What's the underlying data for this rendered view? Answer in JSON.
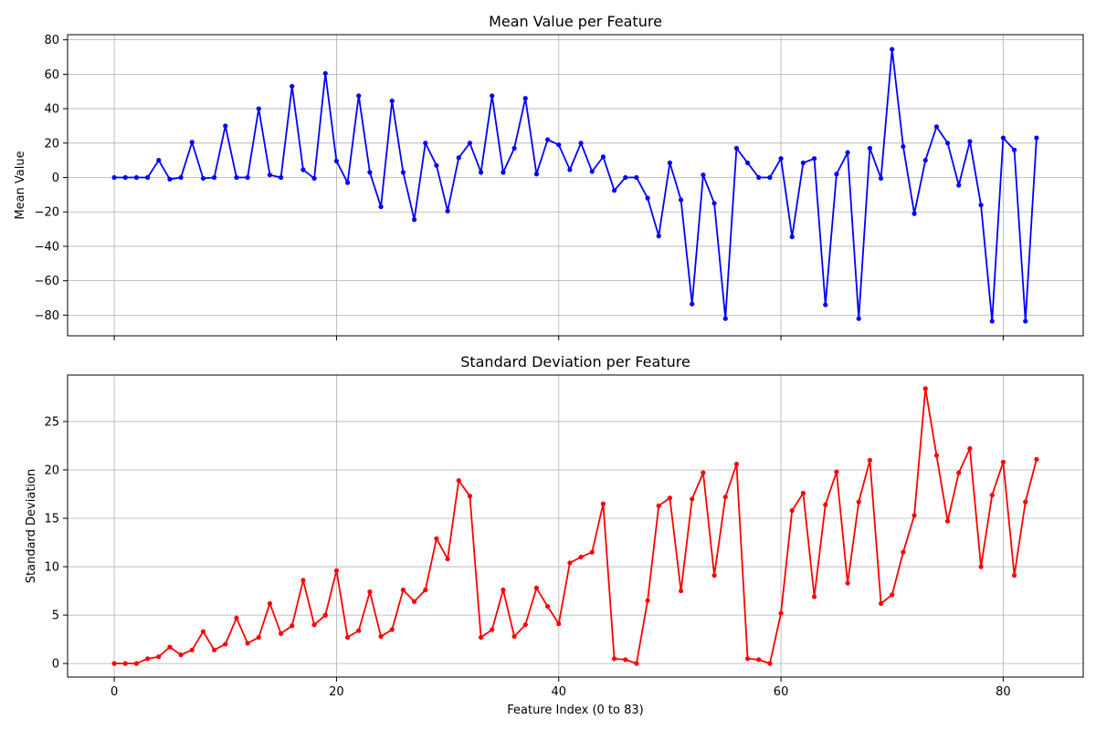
{
  "chart_data": [
    {
      "type": "line",
      "title": "Mean Value per Feature",
      "xlabel": "",
      "ylabel": "Mean Value",
      "xlim": [
        -4.2,
        87.2
      ],
      "ylim": [
        -92,
        83
      ],
      "xticks": [
        0,
        20,
        40,
        60,
        80
      ],
      "xtick_labels_visible": false,
      "yticks": [
        -80,
        -60,
        -40,
        -20,
        0,
        20,
        40,
        60,
        80
      ],
      "ytick_labels": [
        "−80",
        "−60",
        "−40",
        "−20",
        "0",
        "20",
        "40",
        "60",
        "80"
      ],
      "grid": true,
      "color": "#0000ff",
      "x": [
        0,
        1,
        2,
        3,
        4,
        5,
        6,
        7,
        8,
        9,
        10,
        11,
        12,
        13,
        14,
        15,
        16,
        17,
        18,
        19,
        20,
        21,
        22,
        23,
        24,
        25,
        26,
        27,
        28,
        29,
        30,
        31,
        32,
        33,
        34,
        35,
        36,
        37,
        38,
        39,
        40,
        41,
        42,
        43,
        44,
        45,
        46,
        47,
        48,
        49,
        50,
        51,
        52,
        53,
        54,
        55,
        56,
        57,
        58,
        59,
        60,
        61,
        62,
        63,
        64,
        65,
        66,
        67,
        68,
        69,
        70,
        71,
        72,
        73,
        74,
        75,
        76,
        77,
        78,
        79,
        80,
        81,
        82,
        83
      ],
      "values": [
        0,
        0,
        0,
        0,
        10,
        -1,
        0,
        20.5,
        -0.5,
        0,
        30,
        0,
        0,
        40,
        1.5,
        0,
        53,
        4.5,
        -0.5,
        60.5,
        9.5,
        -3,
        47.5,
        3,
        -17,
        44.5,
        3,
        -24.5,
        20,
        7,
        -19.5,
        11.5,
        20,
        3,
        47.5,
        3,
        17,
        46,
        2,
        22,
        19,
        4.5,
        20,
        3.5,
        12,
        -7.5,
        0,
        0,
        -12,
        -34,
        8.5,
        -13,
        -73.5,
        1.5,
        -15,
        -82,
        17,
        8.5,
        0,
        0,
        11,
        -34.5,
        8.5,
        11,
        -74,
        2,
        14.5,
        -82,
        17,
        -0.5,
        74.5,
        18,
        -21,
        10,
        29.5,
        20,
        -4.5,
        21,
        -16,
        -83.5,
        23,
        16,
        -83.5,
        23
      ]
    },
    {
      "type": "line",
      "title": "Standard Deviation per Feature",
      "xlabel": "Feature Index (0 to 83)",
      "ylabel": "Standard Deviation",
      "xlim": [
        -4.2,
        87.2
      ],
      "ylim": [
        -1.4,
        29.8
      ],
      "xticks": [
        0,
        20,
        40,
        60,
        80
      ],
      "xtick_labels": [
        "0",
        "20",
        "40",
        "60",
        "80"
      ],
      "yticks": [
        0,
        5,
        10,
        15,
        20,
        25
      ],
      "ytick_labels": [
        "0",
        "5",
        "10",
        "15",
        "20",
        "25"
      ],
      "grid": true,
      "color": "#ff0000",
      "x": [
        0,
        1,
        2,
        3,
        4,
        5,
        6,
        7,
        8,
        9,
        10,
        11,
        12,
        13,
        14,
        15,
        16,
        17,
        18,
        19,
        20,
        21,
        22,
        23,
        24,
        25,
        26,
        27,
        28,
        29,
        30,
        31,
        32,
        33,
        34,
        35,
        36,
        37,
        38,
        39,
        40,
        41,
        42,
        43,
        44,
        45,
        46,
        47,
        48,
        49,
        50,
        51,
        52,
        53,
        54,
        55,
        56,
        57,
        58,
        59,
        60,
        61,
        62,
        63,
        64,
        65,
        66,
        67,
        68,
        69,
        70,
        71,
        72,
        73,
        74,
        75,
        76,
        77,
        78,
        79,
        80,
        81,
        82,
        83
      ],
      "values": [
        0,
        0,
        0,
        0.5,
        0.7,
        1.7,
        0.9,
        1.4,
        3.3,
        1.4,
        2,
        4.7,
        2.1,
        2.7,
        6.2,
        3.1,
        3.9,
        8.6,
        4,
        5,
        9.6,
        2.7,
        3.4,
        7.4,
        2.8,
        3.5,
        7.6,
        6.4,
        7.6,
        12.9,
        10.8,
        18.9,
        17.3,
        2.7,
        3.5,
        7.6,
        2.8,
        4,
        7.8,
        5.9,
        4.1,
        10.4,
        11,
        11.5,
        16.5,
        0.5,
        0.4,
        0,
        6.5,
        16.3,
        17.1,
        7.5,
        17,
        19.7,
        9.1,
        17.2,
        20.6,
        0.5,
        0.4,
        0,
        5.2,
        15.8,
        17.6,
        6.9,
        16.4,
        19.8,
        8.3,
        16.7,
        21,
        6.2,
        7.1,
        11.5,
        15.3,
        28.4,
        21.5,
        14.7,
        19.7,
        22.2,
        10,
        17.4,
        20.8,
        9.1,
        16.7,
        21.1
      ]
    }
  ]
}
